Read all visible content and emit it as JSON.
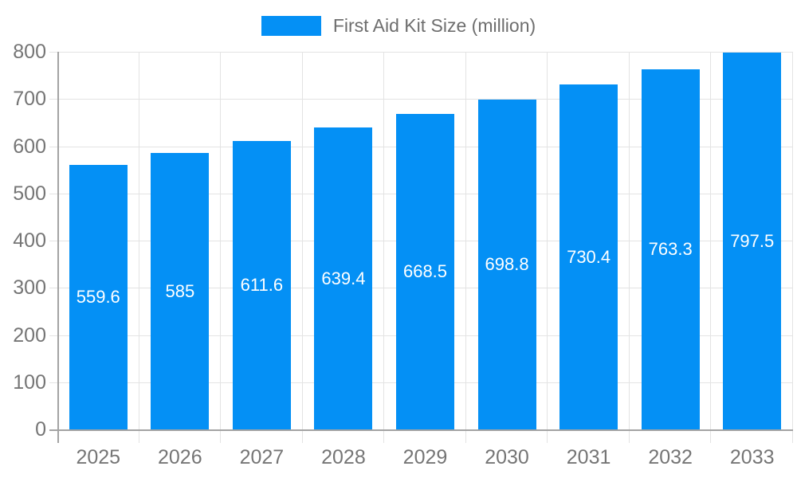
{
  "legend": {
    "label": "First Aid Kit Size (million)"
  },
  "chart_data": {
    "type": "bar",
    "title": "First Aid Kit Size (million)",
    "categories": [
      "2025",
      "2026",
      "2027",
      "2028",
      "2029",
      "2030",
      "2031",
      "2032",
      "2033"
    ],
    "values": [
      559.6,
      585,
      611.6,
      639.4,
      668.5,
      698.8,
      730.4,
      763.3,
      797.5
    ],
    "value_labels": [
      "559.6",
      "585",
      "611.6",
      "639.4",
      "668.5",
      "698.8",
      "730.4",
      "763.3",
      "797.5"
    ],
    "series_name": "First Aid Kit Size (million)",
    "xlabel": "",
    "ylabel": "",
    "ylim": [
      0,
      800
    ],
    "yticks": [
      0,
      100,
      200,
      300,
      400,
      500,
      600,
      700,
      800
    ],
    "grid": "on",
    "legend_position": "top-center",
    "bar_color": "#0490f5",
    "bar_label_color": "#ffffff",
    "axis_text_color": "#757575",
    "grid_color": "#e3e3e3",
    "axis_line_color": "#a3a3a3"
  }
}
